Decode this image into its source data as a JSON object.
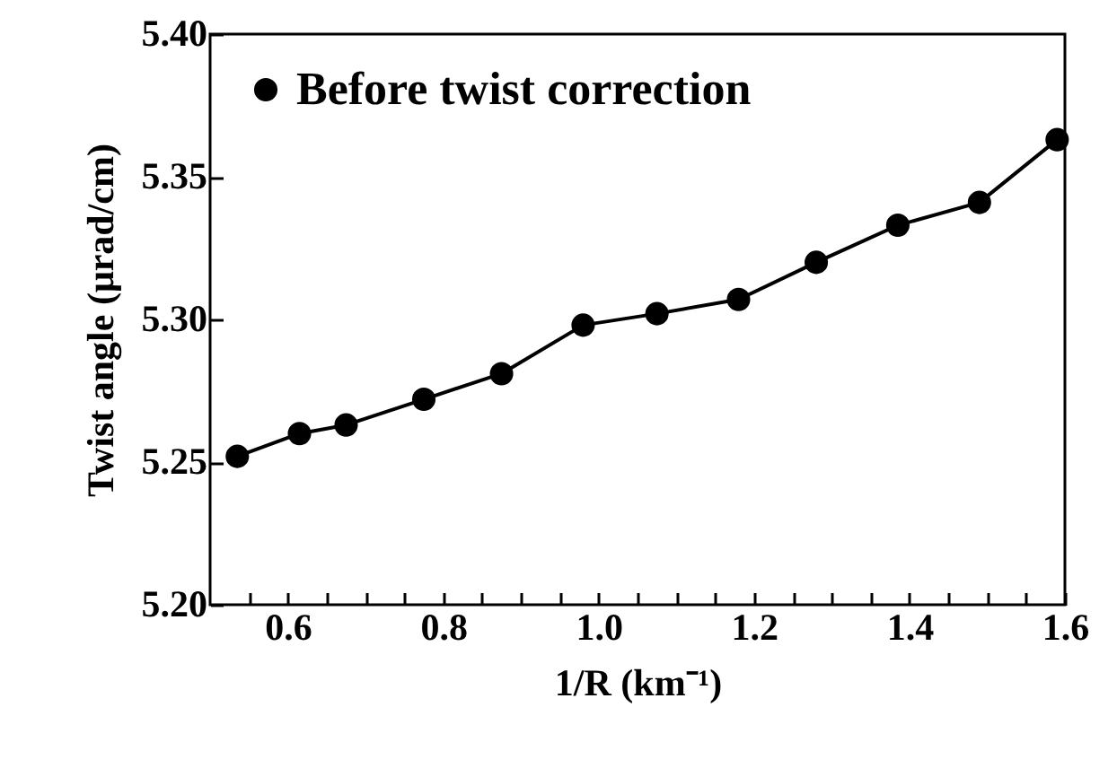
{
  "chart_data": {
    "type": "line",
    "xlabel": "1/R (km⁻¹)",
    "ylabel": "Twist angle (μrad/cm)",
    "x": [
      0.535,
      0.615,
      0.675,
      0.775,
      0.875,
      0.98,
      1.075,
      1.18,
      1.28,
      1.385,
      1.49,
      1.59
    ],
    "series": [
      {
        "name": "Before twist correction",
        "color": "#000000",
        "values": [
          5.252,
          5.26,
          5.263,
          5.272,
          5.281,
          5.298,
          5.302,
          5.307,
          5.32,
          5.333,
          5.341,
          5.363
        ]
      }
    ],
    "xlim": [
      0.5,
      1.6
    ],
    "ylim": [
      5.2,
      5.4
    ],
    "xticks": [
      {
        "value": 0.55,
        "label": null
      },
      0.6,
      {
        "value": 0.65,
        "label": null
      },
      {
        "value": 0.7,
        "label": null
      },
      {
        "value": 0.75,
        "label": null
      },
      0.8,
      {
        "value": 0.85,
        "label": null
      },
      {
        "value": 0.9,
        "label": null
      },
      {
        "value": 0.95,
        "label": null
      },
      {
        "value": 1.0,
        "label": "1.0"
      },
      {
        "value": 1.05,
        "label": null
      },
      {
        "value": 1.1,
        "label": null
      },
      {
        "value": 1.15,
        "label": null
      },
      1.2,
      {
        "value": 1.25,
        "label": null
      },
      {
        "value": 1.3,
        "label": null
      },
      {
        "value": 1.35,
        "label": null
      },
      1.4,
      {
        "value": 1.45,
        "label": null
      },
      {
        "value": 1.5,
        "label": null
      },
      {
        "value": 1.55,
        "label": null
      },
      1.6
    ],
    "yticks": [
      {
        "value": 5.2,
        "label": "5.20"
      },
      {
        "value": 5.25,
        "label": "5.25"
      },
      {
        "value": 5.3,
        "label": "5.30"
      },
      {
        "value": 5.35,
        "label": "5.35"
      },
      {
        "value": 5.4,
        "label": "5.40"
      }
    ],
    "grid": false,
    "legend": "top left",
    "marker": "circle",
    "line_style": "solid"
  }
}
